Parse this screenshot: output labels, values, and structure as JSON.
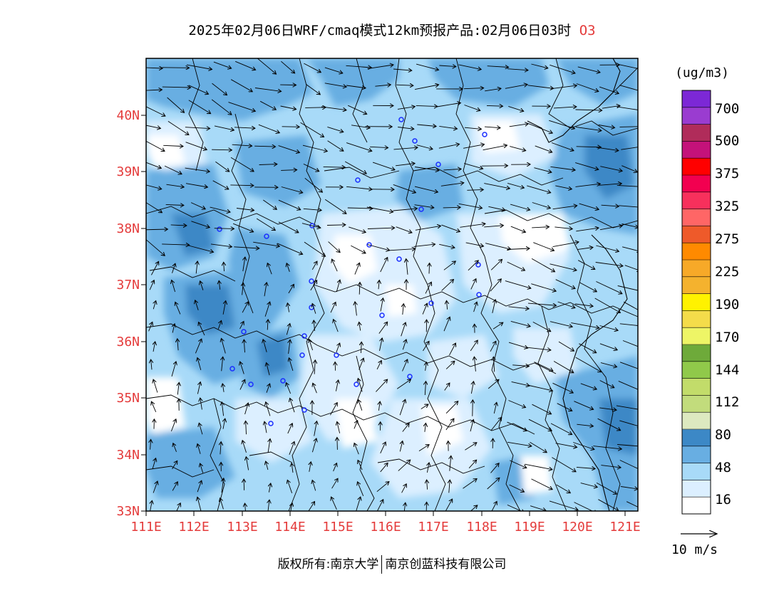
{
  "title": {
    "main": "2025年02月06日WRF/cmaq模式12km预报产品:02月06日03时",
    "species": "O3"
  },
  "map": {
    "lat_labels": [
      "40N",
      "39N",
      "38N",
      "37N",
      "36N",
      "35N",
      "34N",
      "33N"
    ],
    "lon_labels": [
      "111E",
      "112E",
      "113E",
      "114E",
      "115E",
      "116E",
      "117E",
      "118E",
      "119E",
      "120E",
      "121E"
    ],
    "axis_label_color": "#e43b3b"
  },
  "legend": {
    "unit": "(ug/m3)",
    "colors": [
      "#ffffff",
      "#dcefff",
      "#a8daf8",
      "#68aee2",
      "#3c88c6",
      "#dde9c0",
      "#c2dc7c",
      "#c2dc6a",
      "#90c94a",
      "#6eaa3a",
      "#eef566",
      "#f4dc4a",
      "#fff200",
      "#f4b22e",
      "#f7a928",
      "#ff8a00",
      "#ee5a2a",
      "#ff6666",
      "#f7305c",
      "#f20050",
      "#ff0000",
      "#c4127a",
      "#b02c5a",
      "#9a3cd0",
      "#7c28d6"
    ],
    "labels": [
      "16",
      "48",
      "80",
      "112",
      "144",
      "170",
      "190",
      "225",
      "275",
      "325",
      "375",
      "500",
      "700"
    ]
  },
  "wind_reference": {
    "label": "10 m/s"
  },
  "footer": {
    "left": "版权所有:南京大学",
    "right": "南京创蓝科技有限公司"
  }
}
